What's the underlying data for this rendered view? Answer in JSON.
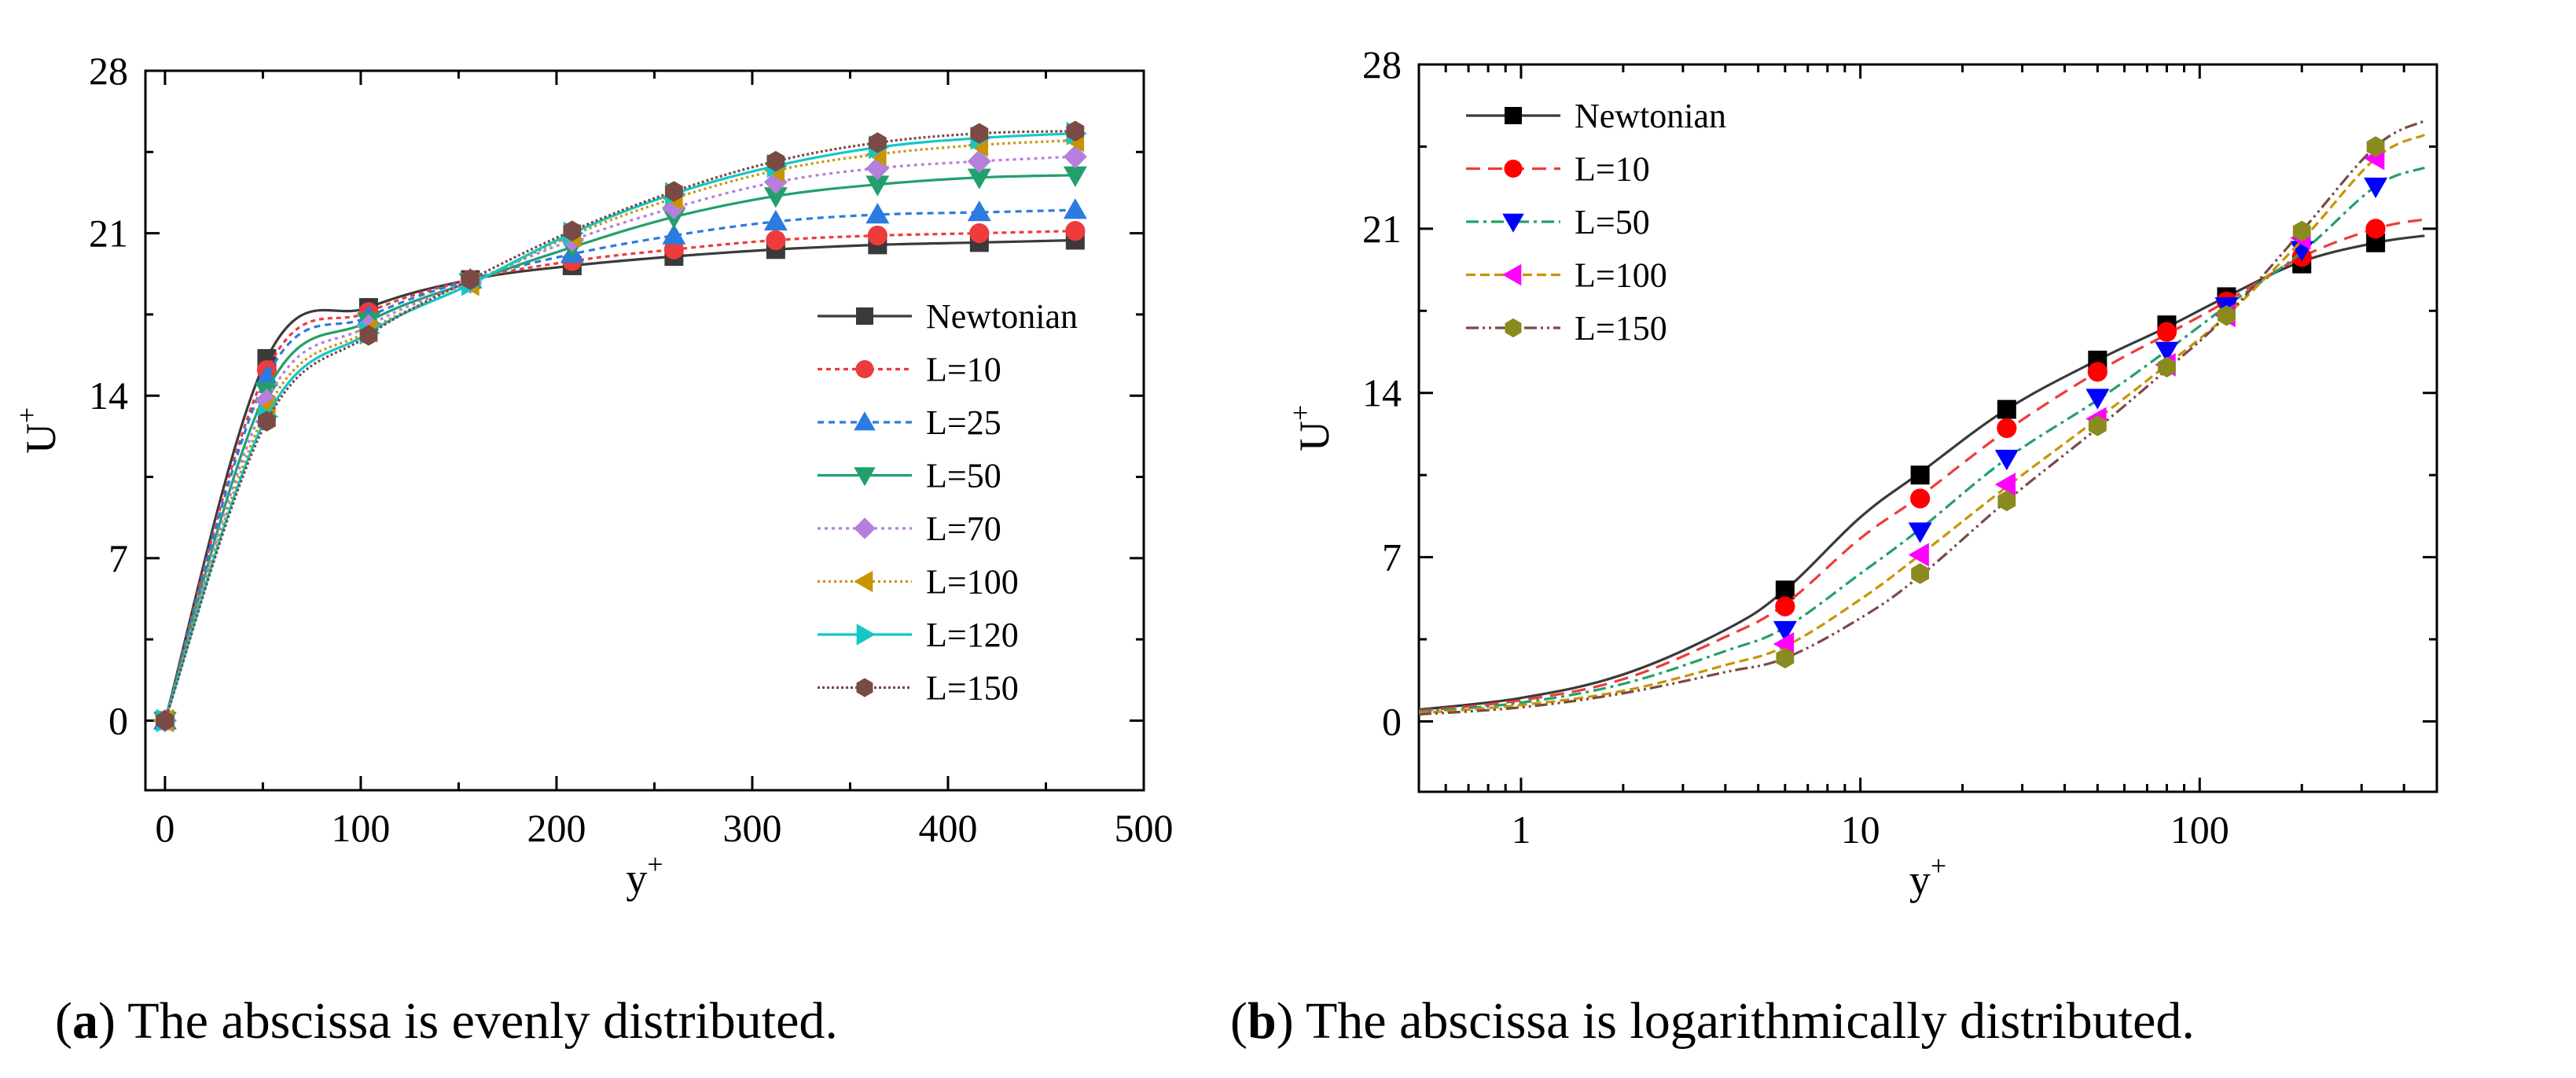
{
  "colors": {
    "newtonian": "#3a3a3a",
    "L10": "#ee3b3b",
    "L25": "#2b7be0",
    "L50": "#22a06b",
    "L70": "#b57fdb",
    "L100": "#c99400",
    "L120": "#13c7c7",
    "L150": "#7a4a44",
    "blackMarker": "#000000",
    "redMarker": "#ff0000",
    "blueMarker": "#0000ff",
    "magentaMarker": "#ff00ff",
    "oliveMarker": "#8a8a1f"
  },
  "captions": {
    "a_label": "a",
    "a_text": ") The abscissa is evenly distributed.",
    "b_label": "b",
    "b_text": ") The abscissa is logarithmically distributed."
  },
  "chart_data": [
    {
      "id": "a",
      "type": "line",
      "xscale": "linear",
      "xlabel": "y",
      "xlabel_sup": "+",
      "ylabel": "U",
      "ylabel_sup": "+",
      "xlim": [
        -10,
        500
      ],
      "ylim": [
        -3,
        28
      ],
      "xticks": [
        0,
        100,
        200,
        300,
        400,
        500
      ],
      "xtick_labels": [
        "0",
        "100",
        "200",
        "300",
        "400",
        "500"
      ],
      "yticks": [
        0,
        7,
        14,
        21,
        28
      ],
      "ytick_labels": [
        "0",
        "7",
        "14",
        "21",
        "28"
      ],
      "legend_position": "center-right",
      "series": [
        {
          "name": "Newtonian",
          "color_key": "newtonian",
          "dash": "",
          "marker": "square",
          "x": [
            0,
            52,
            104,
            156,
            208,
            260,
            312,
            364,
            416,
            465
          ],
          "y": [
            0,
            15.6,
            17.8,
            19.0,
            19.6,
            20.0,
            20.3,
            20.5,
            20.6,
            20.7
          ]
        },
        {
          "name": "L=10",
          "color_key": "L10",
          "dash": "6,5",
          "marker": "circle",
          "x": [
            0,
            52,
            104,
            156,
            208,
            260,
            312,
            364,
            416,
            465
          ],
          "y": [
            0,
            15.1,
            17.6,
            19.0,
            19.8,
            20.3,
            20.7,
            20.9,
            21.0,
            21.1
          ]
        },
        {
          "name": "L=25",
          "color_key": "L25",
          "dash": "8,6",
          "marker": "triangle-up",
          "x": [
            0,
            52,
            104,
            156,
            208,
            260,
            312,
            364,
            416,
            465
          ],
          "y": [
            0,
            14.8,
            17.4,
            19.0,
            20.1,
            20.9,
            21.5,
            21.8,
            21.9,
            22.0
          ]
        },
        {
          "name": "L=50",
          "color_key": "L50",
          "dash": "",
          "marker": "triangle-down",
          "x": [
            0,
            52,
            104,
            156,
            208,
            260,
            312,
            364,
            416,
            465
          ],
          "y": [
            0,
            14.2,
            17.2,
            18.9,
            20.4,
            21.7,
            22.6,
            23.1,
            23.4,
            23.5
          ]
        },
        {
          "name": "L=70",
          "color_key": "L70",
          "dash": "4,5",
          "marker": "diamond",
          "x": [
            0,
            52,
            104,
            156,
            208,
            260,
            312,
            364,
            416,
            465
          ],
          "y": [
            0,
            13.8,
            17.0,
            18.9,
            20.7,
            22.1,
            23.2,
            23.8,
            24.1,
            24.3
          ]
        },
        {
          "name": "L=100",
          "color_key": "L100",
          "dash": "3,4",
          "marker": "triangle-left",
          "x": [
            0,
            52,
            104,
            156,
            208,
            260,
            312,
            364,
            416,
            465
          ],
          "y": [
            0,
            13.4,
            16.8,
            18.8,
            20.9,
            22.5,
            23.7,
            24.4,
            24.8,
            25.0
          ]
        },
        {
          "name": "L=120",
          "color_key": "L120",
          "dash": "",
          "marker": "triangle-right",
          "x": [
            0,
            52,
            104,
            156,
            208,
            260,
            312,
            364,
            416,
            465
          ],
          "y": [
            0,
            13.1,
            16.7,
            18.8,
            21.0,
            22.7,
            23.9,
            24.7,
            25.1,
            25.3
          ]
        },
        {
          "name": "L=150",
          "color_key": "L150",
          "dash": "3,3",
          "marker": "hexagon",
          "x": [
            0,
            52,
            104,
            156,
            208,
            260,
            312,
            364,
            416,
            465
          ],
          "y": [
            0,
            12.9,
            16.6,
            19.0,
            21.1,
            22.8,
            24.1,
            24.9,
            25.3,
            25.4
          ]
        }
      ]
    },
    {
      "id": "b",
      "type": "line",
      "xscale": "log",
      "xlabel": "y",
      "xlabel_sup": "+",
      "ylabel": "U",
      "ylabel_sup": "+",
      "xlim": [
        0.5,
        500
      ],
      "ylim": [
        -3,
        28
      ],
      "xticks": [
        1,
        10,
        100
      ],
      "xtick_labels": [
        "1",
        "10",
        "100"
      ],
      "yticks": [
        0,
        7,
        14,
        21,
        28
      ],
      "ytick_labels": [
        "0",
        "7",
        "14",
        "21",
        "28"
      ],
      "legend_position": "top-left",
      "series": [
        {
          "name": "Newtonian",
          "color_key": "newtonian",
          "marker_color_key": "blackMarker",
          "dash": "",
          "marker": "square",
          "curve_x": [
            0.5,
            1,
            2,
            4,
            6,
            10,
            15,
            27,
            50,
            80,
            120,
            200,
            330,
            460
          ],
          "curve_y": [
            0.5,
            1.0,
            2.0,
            3.9,
            5.6,
            8.7,
            10.6,
            13.3,
            15.4,
            16.8,
            18.1,
            19.6,
            20.4,
            20.7
          ],
          "marker_x": [
            6,
            15,
            27,
            50,
            80,
            120,
            200,
            330
          ],
          "marker_y": [
            5.6,
            10.5,
            13.3,
            15.4,
            16.9,
            18.1,
            19.5,
            20.4
          ]
        },
        {
          "name": "L=10",
          "color_key": "L10",
          "marker_color_key": "redMarker",
          "dash": "18,10",
          "marker": "circle",
          "curve_x": [
            0.5,
            1,
            2,
            4,
            6,
            10,
            15,
            27,
            50,
            80,
            120,
            200,
            330,
            460
          ],
          "curve_y": [
            0.45,
            0.9,
            1.8,
            3.6,
            5.0,
            7.8,
            9.6,
            12.4,
            14.9,
            16.5,
            17.9,
            19.8,
            21.0,
            21.4
          ],
          "marker_x": [
            6,
            15,
            27,
            50,
            80,
            120,
            200,
            330
          ],
          "marker_y": [
            4.9,
            9.5,
            12.5,
            14.9,
            16.6,
            17.9,
            19.8,
            21.0
          ]
        },
        {
          "name": "L=50",
          "color_key": "L50",
          "marker_color_key": "blueMarker",
          "dash": "16,6,4,6",
          "marker": "triangle-down",
          "curve_x": [
            0.5,
            1,
            2,
            4,
            6,
            10,
            15,
            27,
            50,
            80,
            120,
            200,
            330,
            460
          ],
          "curve_y": [
            0.4,
            0.8,
            1.6,
            3.0,
            4.0,
            6.3,
            8.2,
            11.2,
            13.7,
            15.8,
            17.7,
            20.0,
            22.8,
            23.6
          ],
          "marker_x": [
            6,
            15,
            27,
            50,
            80,
            120,
            200,
            330
          ],
          "marker_y": [
            3.9,
            8.1,
            11.2,
            13.8,
            15.8,
            17.7,
            20.1,
            22.8
          ]
        },
        {
          "name": "L=100",
          "color_key": "L100",
          "marker_color_key": "magentaMarker",
          "dash": "12,6",
          "marker": "triangle-left",
          "curve_x": [
            0.5,
            1,
            2,
            4,
            6,
            10,
            15,
            27,
            50,
            80,
            120,
            200,
            330,
            460
          ],
          "curve_y": [
            0.35,
            0.7,
            1.3,
            2.4,
            3.2,
            5.2,
            7.1,
            10.0,
            12.9,
            15.2,
            17.3,
            20.5,
            24.0,
            25.0
          ],
          "marker_x": [
            6,
            15,
            27,
            50,
            80,
            120,
            200,
            330
          ],
          "marker_y": [
            3.3,
            7.1,
            10.1,
            12.9,
            15.2,
            17.3,
            20.6,
            24.0
          ]
        },
        {
          "name": "L=150",
          "color_key": "L150",
          "marker_color_key": "oliveMarker",
          "dash": "16,5,3,5,3,5",
          "marker": "hexagon",
          "curve_x": [
            0.5,
            1,
            2,
            4,
            6,
            10,
            15,
            27,
            50,
            80,
            120,
            200,
            330,
            460
          ],
          "curve_y": [
            0.3,
            0.6,
            1.2,
            2.1,
            2.7,
            4.4,
            6.2,
            9.4,
            12.5,
            15.0,
            17.3,
            20.9,
            24.5,
            25.6
          ],
          "marker_x": [
            6,
            15,
            27,
            50,
            80,
            120,
            200,
            330
          ],
          "marker_y": [
            2.7,
            6.3,
            9.4,
            12.6,
            15.1,
            17.3,
            20.9,
            24.5
          ]
        }
      ]
    }
  ]
}
